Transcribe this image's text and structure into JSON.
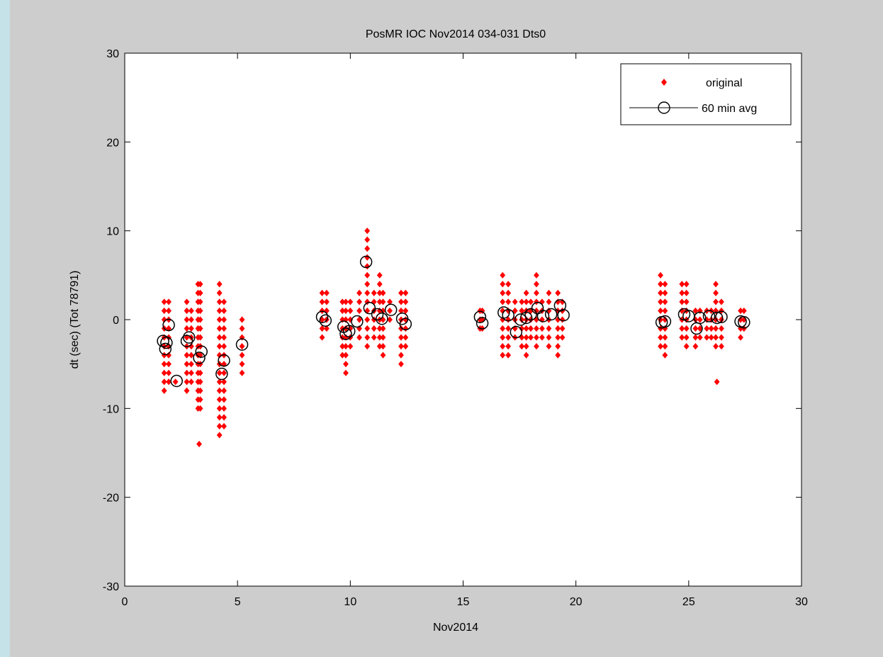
{
  "window": {
    "background_color": "#cdcdcd",
    "left_strip_color": "#c4e2e8"
  },
  "chart_data": {
    "type": "scatter",
    "title": "PosMR IOC Nov2014 034-031 Dts0",
    "xlabel": "Nov2014",
    "ylabel": "dt (sec)    (Tot 78791)",
    "xlim": [
      0,
      30
    ],
    "ylim": [
      -30,
      30
    ],
    "xticks": [
      0,
      5,
      10,
      15,
      20,
      25,
      30
    ],
    "yticks": [
      -30,
      -20,
      -10,
      0,
      10,
      20,
      30
    ],
    "grid": false,
    "legend_position": "top-right",
    "series": [
      {
        "name": "original",
        "marker": "diamond",
        "color": "#ff0000",
        "clusters": [
          {
            "x": 1.75,
            "ymin": -8,
            "ymax": 2
          },
          {
            "x": 1.95,
            "ymin": -7,
            "ymax": 2
          },
          {
            "x": 2.25,
            "ymin": -7,
            "ymax": -7
          },
          {
            "x": 2.75,
            "ymin": -8,
            "ymax": 2
          },
          {
            "x": 2.95,
            "ymin": -7,
            "ymax": 1
          },
          {
            "x": 3.25,
            "ymin": -10,
            "ymax": 4
          },
          {
            "x": 3.35,
            "ymin": -10,
            "ymax": 4
          },
          {
            "x": 4.2,
            "ymin": -13,
            "ymax": 4
          },
          {
            "x": 4.4,
            "ymin": -12,
            "ymax": 2
          },
          {
            "x": 5.2,
            "ymin": -6,
            "ymax": 0
          },
          {
            "x": 8.75,
            "ymin": -2,
            "ymax": 3
          },
          {
            "x": 8.95,
            "ymin": -1,
            "ymax": 3
          },
          {
            "x": 9.65,
            "ymin": -4,
            "ymax": 2
          },
          {
            "x": 9.8,
            "ymin": -6,
            "ymax": 2
          },
          {
            "x": 10.0,
            "ymin": -3,
            "ymax": 2
          },
          {
            "x": 10.4,
            "ymin": -2,
            "ymax": 3
          },
          {
            "x": 10.75,
            "ymin": -3,
            "ymax": 10
          },
          {
            "x": 11.05,
            "ymin": -2,
            "ymax": 3
          },
          {
            "x": 11.3,
            "ymin": -3,
            "ymax": 5
          },
          {
            "x": 11.45,
            "ymin": -4,
            "ymax": 3
          },
          {
            "x": 11.75,
            "ymin": 0,
            "ymax": 2
          },
          {
            "x": 12.25,
            "ymin": -5,
            "ymax": 3
          },
          {
            "x": 12.45,
            "ymin": -3,
            "ymax": 3
          },
          {
            "x": 15.75,
            "ymin": -1,
            "ymax": 1
          },
          {
            "x": 15.85,
            "ymin": -1,
            "ymax": 1
          },
          {
            "x": 16.75,
            "ymin": -4,
            "ymax": 5
          },
          {
            "x": 17.0,
            "ymin": -4,
            "ymax": 4
          },
          {
            "x": 17.3,
            "ymin": -2,
            "ymax": 2
          },
          {
            "x": 17.6,
            "ymin": -3,
            "ymax": 2
          },
          {
            "x": 17.8,
            "ymin": -4,
            "ymax": 3
          },
          {
            "x": 18.0,
            "ymin": -2,
            "ymax": 2
          },
          {
            "x": 18.25,
            "ymin": -3,
            "ymax": 5
          },
          {
            "x": 18.5,
            "ymin": -2,
            "ymax": 2
          },
          {
            "x": 18.8,
            "ymin": -3,
            "ymax": 3
          },
          {
            "x": 19.2,
            "ymin": -4,
            "ymax": 3
          },
          {
            "x": 19.4,
            "ymin": -2,
            "ymax": 2
          },
          {
            "x": 23.75,
            "ymin": -3,
            "ymax": 5
          },
          {
            "x": 23.95,
            "ymin": -4,
            "ymax": 4
          },
          {
            "x": 24.7,
            "ymin": -2,
            "ymax": 4
          },
          {
            "x": 24.9,
            "ymin": -3,
            "ymax": 4
          },
          {
            "x": 25.3,
            "ymin": -3,
            "ymax": 1
          },
          {
            "x": 25.5,
            "ymin": -2,
            "ymax": 1
          },
          {
            "x": 25.8,
            "ymin": -2,
            "ymax": 1
          },
          {
            "x": 26.0,
            "ymin": -2,
            "ymax": 1
          },
          {
            "x": 26.2,
            "ymin": -3,
            "ymax": 4
          },
          {
            "x": 26.45,
            "ymin": -3,
            "ymax": 2
          },
          {
            "x": 27.3,
            "ymin": -2,
            "ymax": 1
          },
          {
            "x": 27.45,
            "ymin": -1,
            "ymax": 1
          }
        ],
        "outliers": [
          {
            "x": 3.3,
            "y": -14
          },
          {
            "x": 26.25,
            "y": -7
          }
        ]
      },
      {
        "name": "60 min avg",
        "marker": "circle",
        "color": "#000000",
        "x": [
          1.7,
          1.8,
          1.85,
          1.95,
          2.3,
          2.75,
          2.85,
          3.3,
          3.4,
          4.3,
          4.4,
          5.2,
          8.75,
          8.9,
          9.7,
          9.8,
          9.95,
          10.3,
          10.7,
          10.85,
          11.2,
          11.4,
          11.8,
          12.3,
          12.45,
          15.75,
          15.85,
          16.8,
          17.0,
          17.35,
          17.55,
          17.8,
          18.0,
          18.3,
          18.55,
          18.9,
          19.3,
          19.45,
          23.8,
          23.95,
          24.8,
          25.0,
          25.35,
          25.5,
          25.9,
          26.25,
          26.45,
          27.3,
          27.45
        ],
        "y": [
          -2.4,
          -3.3,
          -2.6,
          -0.6,
          -6.9,
          -2.4,
          -2.0,
          -4.3,
          -3.6,
          -6.1,
          -4.6,
          -2.8,
          0.3,
          -0.1,
          -0.8,
          -1.6,
          -1.3,
          -0.2,
          6.5,
          1.3,
          0.6,
          0.1,
          1.1,
          0.1,
          -0.5,
          0.3,
          -0.4,
          0.8,
          0.5,
          -1.4,
          0.0,
          0.2,
          0.6,
          1.3,
          0.4,
          0.6,
          1.6,
          0.5,
          -0.3,
          -0.2,
          0.6,
          0.4,
          -1.0,
          0.2,
          0.4,
          0.2,
          0.3,
          -0.2,
          -0.3
        ]
      }
    ]
  }
}
